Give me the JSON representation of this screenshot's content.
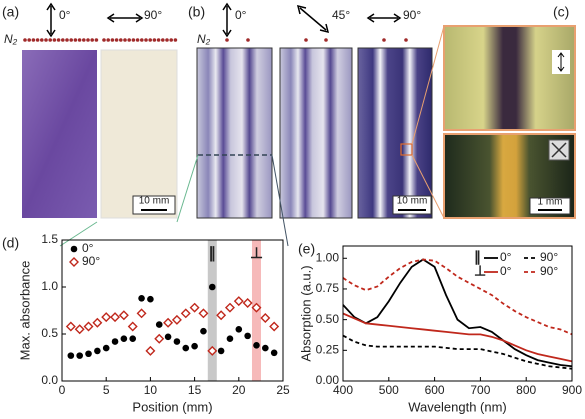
{
  "panels": {
    "a": {
      "label": "(a)",
      "angles": [
        "0°",
        "90°"
      ],
      "gas": "N₂",
      "scale": "10 mm"
    },
    "b": {
      "label": "(b)",
      "angles": [
        "0°",
        "45°",
        "90°"
      ],
      "gas": "N₂",
      "scale": "10 mm"
    },
    "c": {
      "label": "(c)",
      "scale": "1 mm"
    }
  },
  "chart_data": [
    {
      "type": "scatter",
      "panel_label": "(d)",
      "xlabel": "Position (mm)",
      "ylabel": "Max. absorbance",
      "x": [
        1,
        2,
        3,
        4,
        5,
        6,
        7,
        8,
        9,
        10,
        11,
        12,
        13,
        14,
        15,
        16,
        17,
        18,
        19,
        20,
        21,
        22,
        23,
        24
      ],
      "series": [
        {
          "name": "0°",
          "color": "#000000",
          "marker": "circle",
          "values": [
            0.27,
            0.27,
            0.29,
            0.32,
            0.35,
            0.42,
            0.45,
            0.45,
            0.88,
            0.87,
            0.6,
            0.47,
            0.42,
            0.35,
            0.37,
            0.53,
            1.0,
            0.32,
            0.45,
            0.55,
            0.48,
            0.38,
            0.35,
            0.3
          ]
        },
        {
          "name": "90°",
          "color": "#c0281c",
          "marker": "diamond",
          "values": [
            0.58,
            0.55,
            0.58,
            0.62,
            0.68,
            0.68,
            0.7,
            0.58,
            0.72,
            0.32,
            0.45,
            0.62,
            0.65,
            0.72,
            0.78,
            0.72,
            0.32,
            0.7,
            0.78,
            0.85,
            0.83,
            0.78,
            0.67,
            0.58
          ]
        }
      ],
      "annotations": [
        {
          "text": "∥",
          "x": 17,
          "color": "#c8c8c8"
        },
        {
          "text": "⊥",
          "x": 22,
          "color": "#f6b9b9"
        }
      ],
      "xlim": [
        0,
        25
      ],
      "xticks": [
        0,
        5,
        10,
        15,
        20,
        25
      ],
      "ylim": [
        0,
        1.5
      ],
      "yticks": [
        {
          "value": 0,
          "label": "0.0"
        },
        {
          "value": 0.5,
          "label": "0.5"
        },
        {
          "value": 1,
          "label": "1.0"
        },
        {
          "value": 1.5,
          "label": "1.5"
        }
      ],
      "legend": "upper-left"
    },
    {
      "type": "line",
      "panel_label": "(e)",
      "xlabel": "Wavelength (nm)",
      "ylabel": "Absorption (a.u.)",
      "x": [
        400,
        425,
        450,
        475,
        500,
        525,
        550,
        575,
        600,
        625,
        650,
        675,
        700,
        725,
        750,
        775,
        800,
        825,
        850,
        875,
        900
      ],
      "series": [
        {
          "name": "0°",
          "group": "∥",
          "color": "#000000",
          "dash": false,
          "values": [
            0.62,
            0.52,
            0.47,
            0.52,
            0.65,
            0.8,
            0.93,
            0.99,
            0.93,
            0.7,
            0.5,
            0.43,
            0.44,
            0.4,
            0.33,
            0.26,
            0.21,
            0.17,
            0.15,
            0.13,
            0.12
          ]
        },
        {
          "name": "90°",
          "group": "∥",
          "color": "#000000",
          "dash": true,
          "values": [
            0.37,
            0.32,
            0.29,
            0.28,
            0.28,
            0.28,
            0.28,
            0.28,
            0.28,
            0.27,
            0.26,
            0.26,
            0.26,
            0.24,
            0.22,
            0.19,
            0.16,
            0.14,
            0.12,
            0.11,
            0.1
          ]
        },
        {
          "name": "0°",
          "group": "⊥",
          "color": "#c0281c",
          "dash": false,
          "values": [
            0.55,
            0.51,
            0.47,
            0.46,
            0.45,
            0.44,
            0.43,
            0.42,
            0.41,
            0.4,
            0.39,
            0.38,
            0.38,
            0.36,
            0.33,
            0.29,
            0.25,
            0.22,
            0.2,
            0.18,
            0.16
          ]
        },
        {
          "name": "90°",
          "group": "⊥",
          "color": "#c0281c",
          "dash": true,
          "values": [
            0.84,
            0.78,
            0.74,
            0.77,
            0.85,
            0.92,
            0.97,
            0.99,
            0.98,
            0.92,
            0.85,
            0.8,
            0.75,
            0.7,
            0.63,
            0.57,
            0.52,
            0.48,
            0.44,
            0.42,
            0.38
          ]
        }
      ],
      "xlim": [
        400,
        900
      ],
      "xticks": [
        400,
        500,
        600,
        700,
        800,
        900
      ],
      "ylim": [
        0,
        1.1
      ],
      "yticks": [
        {
          "value": 0,
          "label": "0.00"
        },
        {
          "value": 0.25,
          "label": "0.25"
        },
        {
          "value": 0.5,
          "label": "0.50"
        },
        {
          "value": 0.75,
          "label": "0.75"
        },
        {
          "value": 1,
          "label": "1.00"
        }
      ],
      "legend": "upper-right"
    }
  ]
}
